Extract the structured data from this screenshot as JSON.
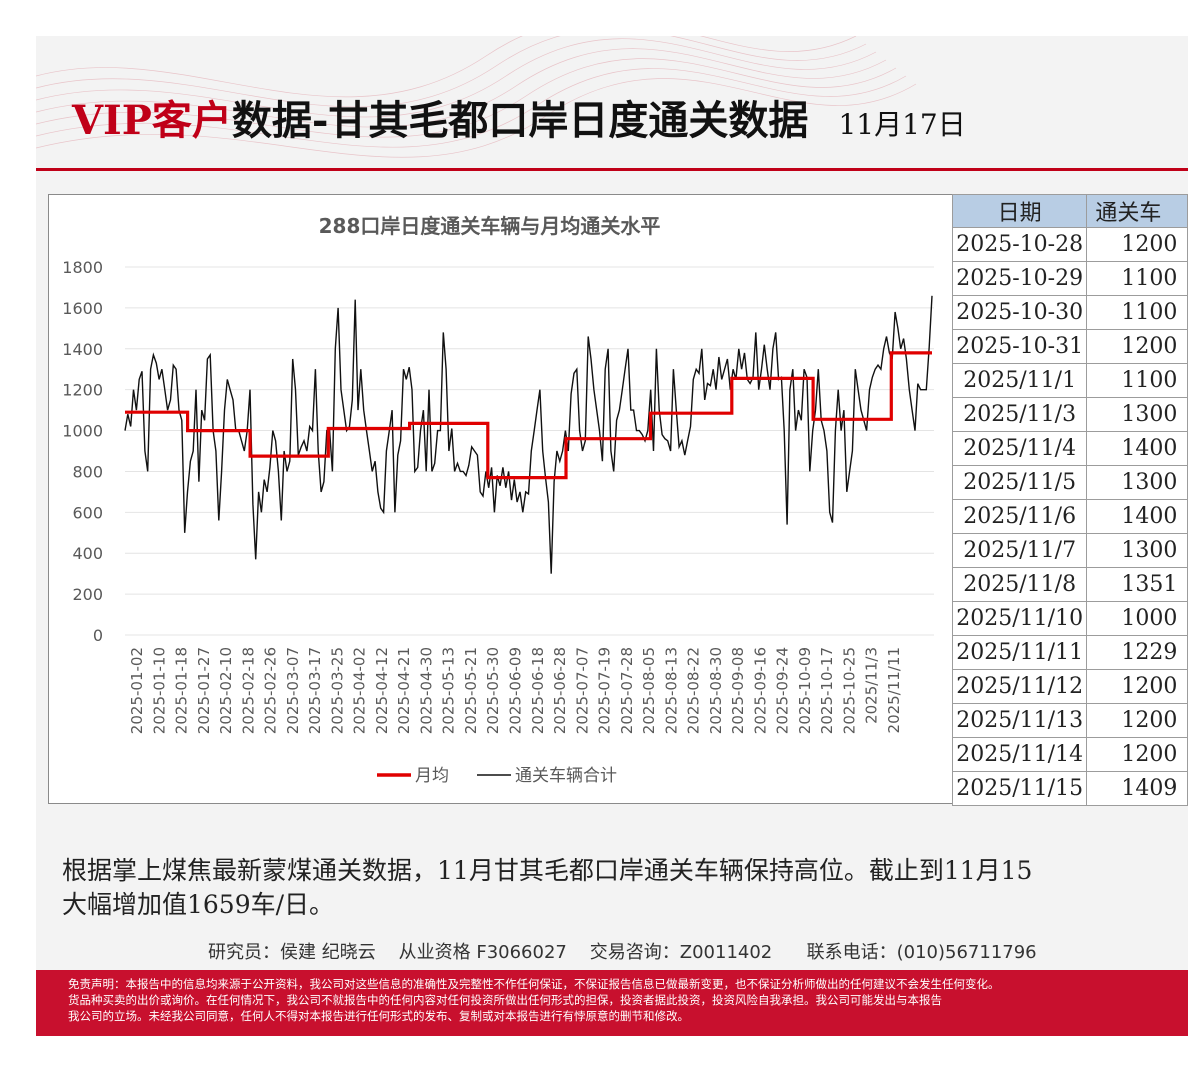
{
  "header": {
    "title_prefix": "VIP客户",
    "title_main": "数据-甘其毛都口岸日度通关数据",
    "date": "11月17日"
  },
  "colors": {
    "brand_red": "#c00018",
    "monthly_line": "#e00000",
    "daily_line": "#111111",
    "table_header_bg": "#b8cde4"
  },
  "table": {
    "headers": [
      "日期",
      "通关车"
    ],
    "rows": [
      [
        "2025-10-28",
        "1200"
      ],
      [
        "2025-10-29",
        "1100"
      ],
      [
        "2025-10-30",
        "1100"
      ],
      [
        "2025-10-31",
        "1200"
      ],
      [
        "2025/11/1",
        "1100"
      ],
      [
        "2025/11/3",
        "1300"
      ],
      [
        "2025/11/4",
        "1400"
      ],
      [
        "2025/11/5",
        "1300"
      ],
      [
        "2025/11/6",
        "1400"
      ],
      [
        "2025/11/7",
        "1300"
      ],
      [
        "2025/11/8",
        "1351"
      ],
      [
        "2025/11/10",
        "1000"
      ],
      [
        "2025/11/11",
        "1229"
      ],
      [
        "2025/11/12",
        "1200"
      ],
      [
        "2025/11/13",
        "1200"
      ],
      [
        "2025/11/14",
        "1200"
      ],
      [
        "2025/11/15",
        "1409"
      ]
    ]
  },
  "chart_data": {
    "type": "line",
    "title": "288口岸日度通关车辆与月均通关水平",
    "ylim": [
      0,
      1800
    ],
    "yticks": [
      0,
      200,
      400,
      600,
      800,
      1000,
      1200,
      1400,
      1600,
      1800
    ],
    "x_tick_labels": [
      "2025-01-02",
      "2025-01-10",
      "2025-01-18",
      "2025-01-27",
      "2025-02-10",
      "2025-02-18",
      "2025-02-26",
      "2025-03-07",
      "2025-03-17",
      "2025-03-25",
      "2025-04-02",
      "2025-04-12",
      "2025-04-21",
      "2025-04-30",
      "2025-05-13",
      "2025-05-21",
      "2025-05-30",
      "2025-06-09",
      "2025-06-18",
      "2025-06-28",
      "2025-07-07",
      "2025-07-19",
      "2025-07-28",
      "2025-08-05",
      "2025-08-13",
      "2025-08-22",
      "2025-08-30",
      "2025-09-08",
      "2025-09-16",
      "2025-09-24",
      "2025-10-09",
      "2025-10-17",
      "2025-10-25",
      "2025/11/3",
      "2025/11/11"
    ],
    "grid": true,
    "legend_position": "bottom",
    "series": [
      {
        "name": "月均",
        "type": "step",
        "segments": [
          {
            "month": "2025-01",
            "value": 1090
          },
          {
            "month": "2025-02",
            "value": 1000
          },
          {
            "month": "2025-03",
            "value": 875
          },
          {
            "month": "2025-04",
            "value": 1010
          },
          {
            "month": "2025-05",
            "value": 1035
          },
          {
            "month": "2025-06",
            "value": 770
          },
          {
            "month": "2025-07",
            "value": 960
          },
          {
            "month": "2025-08",
            "value": 1085
          },
          {
            "month": "2025-09",
            "value": 1255
          },
          {
            "month": "2025-10",
            "value": 1055
          },
          {
            "month": "2025-11",
            "value": 1380
          }
        ]
      },
      {
        "name": "通关车辆合计",
        "type": "line",
        "values": [
          1000,
          1080,
          1020,
          1200,
          1100,
          1250,
          1290,
          900,
          800,
          1300,
          1370,
          1330,
          1250,
          1300,
          1200,
          1100,
          1150,
          1320,
          1300,
          1100,
          1050,
          500,
          700,
          850,
          900,
          1200,
          750,
          1100,
          1050,
          1350,
          1370,
          1000,
          900,
          560,
          800,
          1100,
          1250,
          1200,
          1150,
          1000,
          1000,
          950,
          900,
          1000,
          1200,
          640,
          370,
          700,
          600,
          760,
          700,
          820,
          1000,
          950,
          800,
          560,
          900,
          800,
          850,
          1350,
          1200,
          880,
          920,
          950,
          900,
          1020,
          1000,
          1300,
          900,
          700,
          750,
          1000,
          1000,
          800,
          1400,
          1600,
          1200,
          1100,
          1000,
          1020,
          1150,
          1640,
          1100,
          1300,
          1100,
          1000,
          900,
          800,
          850,
          700,
          620,
          600,
          900,
          1000,
          1100,
          600,
          880,
          950,
          1300,
          1250,
          1310,
          1200,
          800,
          820,
          1000,
          1100,
          800,
          1200,
          800,
          840,
          1000,
          1000,
          1480,
          1300,
          900,
          1010,
          800,
          840,
          800,
          800,
          780,
          830,
          920,
          900,
          880,
          700,
          680,
          800,
          720,
          820,
          600,
          780,
          730,
          820,
          720,
          800,
          660,
          760,
          650,
          700,
          600,
          700,
          690,
          900,
          1000,
          1100,
          1200,
          900,
          770,
          650,
          300,
          750,
          900,
          850,
          900,
          1000,
          900,
          1180,
          1280,
          1300,
          1000,
          900,
          950,
          1460,
          1350,
          1200,
          1100,
          1000,
          850,
          1300,
          1400,
          900,
          800,
          1050,
          1100,
          1200,
          1300,
          1400,
          1100,
          1100,
          1000,
          1000,
          980,
          950,
          1000,
          1200,
          900,
          1400,
          1100,
          980,
          960,
          950,
          900,
          1300,
          1100,
          920,
          950,
          880,
          950,
          1020,
          1250,
          1300,
          1280,
          1400,
          1150,
          1230,
          1220,
          1300,
          1200,
          1360,
          1250,
          1300,
          1350,
          1200,
          1300,
          1250,
          1400,
          1300,
          1380,
          1250,
          1230,
          1260,
          1480,
          1200,
          1300,
          1420,
          1300,
          1200,
          1400,
          1480,
          1250,
          1260,
          1000,
          540,
          1200,
          1300,
          1000,
          1100,
          1050,
          1300,
          1260,
          800,
          1000,
          1100,
          1300,
          1050,
          1000,
          900,
          600,
          550,
          1000,
          1200,
          1000,
          1100,
          700,
          800,
          900,
          1300,
          1200,
          1100,
          1050,
          1000,
          1200,
          1260,
          1300,
          1320,
          1300,
          1400,
          1460,
          1380,
          1350,
          1580,
          1500,
          1400,
          1450,
          1350,
          1200,
          1100,
          1000,
          1229,
          1200,
          1200,
          1200,
          1409,
          1659
        ]
      }
    ]
  },
  "comment": {
    "line1": "根据掌上煤焦最新蒙煤通关数据，11月甘其毛都口岸通关车辆保持高位。截止到11月15",
    "line2": "大幅增加值1659车/日。"
  },
  "contact": {
    "researchers": "研究员：侯建 纪晓云",
    "qualification": "从业资格 F3066027",
    "consult": "交易咨询：Z0011402",
    "phone": "联系电话：(010)56711796"
  },
  "disclaimer": {
    "line1": "免责声明：本报告中的信息均来源于公开资料，我公司对这些信息的准确性及完整性不作任何保证，不保证报告信息已做最新变更，也不保证分析师做出的任何建议不会发生任何变化。",
    "line2": "货品种买卖的出价或询价。在任何情况下，我公司不就报告中的任何内容对任何投资所做出任何形式的担保，投资者据此投资，投资风险自我承担。我公司可能发出与本报告",
    "line3": "我公司的立场。未经我公司同意，任何人不得对本报告进行任何形式的发布、复制或对本报告进行有悖原意的删节和修改。"
  }
}
